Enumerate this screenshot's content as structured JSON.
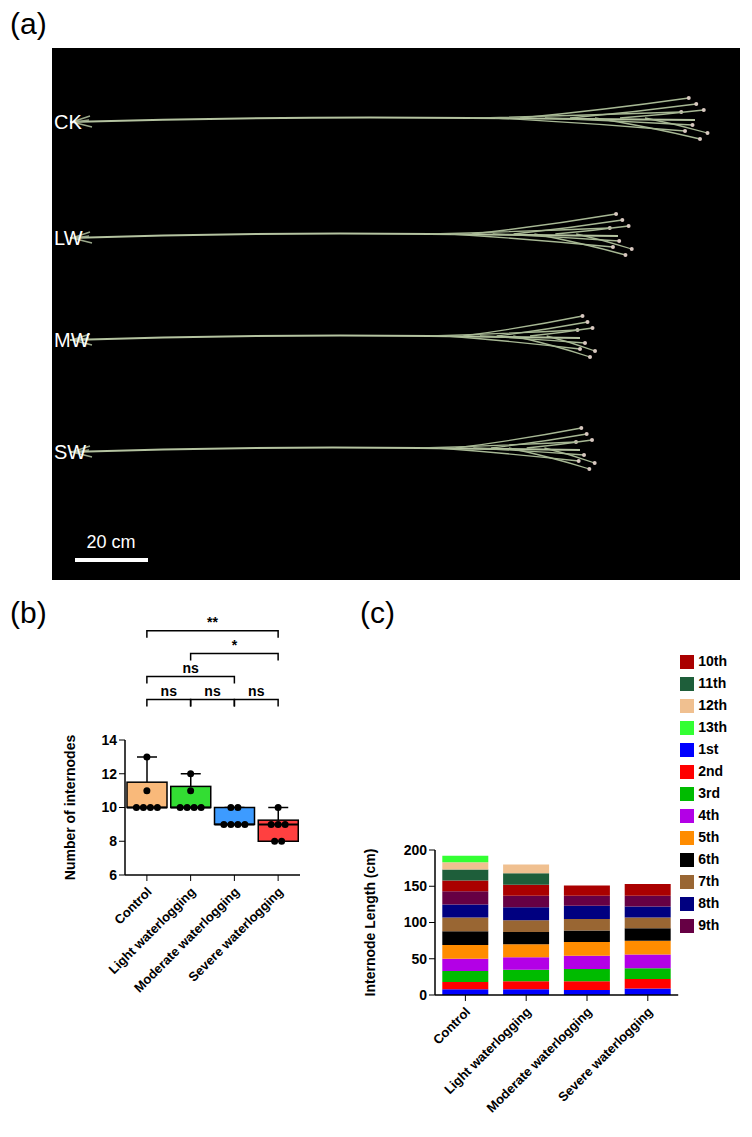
{
  "photo": {
    "panel": "(a)",
    "labels": [
      "CK",
      "LW",
      "MW",
      "SW"
    ],
    "scale_bar": "20 cm"
  },
  "chart_data": [
    {
      "type": "box",
      "panel": "(b)",
      "categories": [
        "Control",
        "Light waterlogging",
        "Moderate waterlogging",
        "Severe waterlogging"
      ],
      "y_label": "Number of internodes",
      "ylim": [
        6,
        14
      ],
      "yticks": [
        6,
        8,
        10,
        12,
        14
      ],
      "colors": [
        "#F9B97A",
        "#33DD33",
        "#3D9BFF",
        "#FF4040"
      ],
      "min": [
        10,
        10,
        9,
        8
      ],
      "q1": [
        10,
        10,
        9,
        8
      ],
      "median": [
        10,
        10,
        9,
        9
      ],
      "q3": [
        11.5,
        11.25,
        10,
        9.25
      ],
      "max": [
        13,
        12,
        10,
        10
      ],
      "points": [
        [
          10,
          10,
          10,
          10,
          11,
          13
        ],
        [
          10,
          10,
          10,
          10,
          11,
          12
        ],
        [
          9,
          9,
          9,
          9,
          10,
          10
        ],
        [
          8,
          8,
          9,
          9,
          9,
          10
        ]
      ],
      "comparisons": [
        {
          "from": "Control",
          "to": "Severe waterlogging",
          "label": "**"
        },
        {
          "from": "Light waterlogging",
          "to": "Severe waterlogging",
          "label": "*"
        },
        {
          "from": "Control",
          "to": "Moderate waterlogging",
          "label": "ns"
        },
        {
          "from": "Control",
          "to": "Light waterlogging",
          "label": "ns"
        },
        {
          "from": "Light waterlogging",
          "to": "Moderate waterlogging",
          "label": "ns"
        },
        {
          "from": "Moderate waterlogging",
          "to": "Severe waterlogging",
          "label": "ns"
        }
      ]
    },
    {
      "type": "bar",
      "stacked": true,
      "panel": "(c)",
      "categories": [
        "Control",
        "Light waterlogging",
        "Moderate waterlogging",
        "Severe waterlogging"
      ],
      "y_label": "Internode Length (cm)",
      "ylim": [
        0,
        200
      ],
      "yticks": [
        0,
        50,
        100,
        150,
        200
      ],
      "legend": "right",
      "series": [
        {
          "name": "1st",
          "color": "#0000FF",
          "values": [
            8,
            8,
            7,
            9
          ]
        },
        {
          "name": "2nd",
          "color": "#FF0000",
          "values": [
            10,
            11,
            12,
            13
          ]
        },
        {
          "name": "3rd",
          "color": "#00BB00",
          "values": [
            15,
            16,
            17,
            15
          ]
        },
        {
          "name": "4th",
          "color": "#B300E6",
          "values": [
            17,
            17,
            18,
            19
          ]
        },
        {
          "name": "5th",
          "color": "#FF8C00",
          "values": [
            19,
            18,
            19,
            19
          ]
        },
        {
          "name": "6th",
          "color": "#000000",
          "values": [
            19,
            17,
            16,
            17
          ]
        },
        {
          "name": "7th",
          "color": "#996633",
          "values": [
            19,
            16,
            16,
            15
          ]
        },
        {
          "name": "8th",
          "color": "#000080",
          "values": [
            18,
            18,
            18,
            15
          ]
        },
        {
          "name": "9th",
          "color": "#660044",
          "values": [
            18,
            16,
            14,
            15
          ]
        },
        {
          "name": "10th",
          "color": "#AA0000",
          "values": [
            15,
            15,
            14,
            16
          ]
        },
        {
          "name": "11th",
          "color": "#1E5E3A",
          "values": [
            15,
            16,
            null,
            null
          ]
        },
        {
          "name": "12th",
          "color": "#F0C090",
          "values": [
            10,
            12,
            null,
            null
          ]
        },
        {
          "name": "13th",
          "color": "#33FF33",
          "values": [
            9,
            null,
            null,
            null
          ]
        }
      ]
    }
  ]
}
